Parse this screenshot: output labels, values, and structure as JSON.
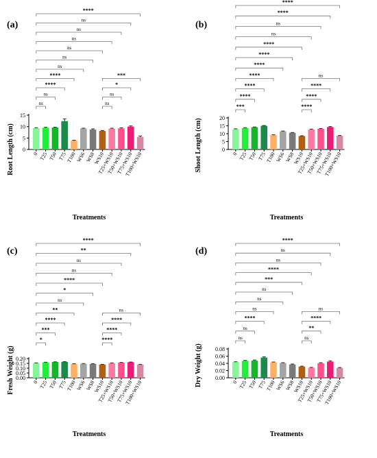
{
  "colors": [
    "#86f59b",
    "#22ee3c",
    "#16b62a",
    "#1b8a4a",
    "#ffb067",
    "#a4a4a4",
    "#7a7a7a",
    "#b05f13",
    "#ff7aa3",
    "#ff4f8d",
    "#ec1c76",
    "#d48aa6"
  ],
  "chart_data": [
    {
      "type": "bar",
      "panel": "(a)",
      "categories": [
        "0",
        "T25",
        "T50",
        "T75",
        "T100",
        "WS6",
        "WS8",
        "WS10",
        "T25+WS10",
        "T50+WS10",
        "T75+WS10",
        "T100+WS10"
      ],
      "values": [
        9.3,
        9.5,
        9.6,
        12.4,
        3.9,
        9.2,
        8.7,
        8.1,
        9.1,
        9.2,
        10.0,
        5.5
      ],
      "errors": [
        0.2,
        0.2,
        0.1,
        1.0,
        0.15,
        0.1,
        0.3,
        0.2,
        0.2,
        0.25,
        0.3,
        0.4
      ],
      "xlabel": "Treatments",
      "ylabel": "Root Length (cm)",
      "ylim": [
        0,
        15
      ],
      "yticks": [
        "0",
        "5",
        "10",
        "15"
      ],
      "comparisons": [
        {
          "from": "0",
          "to": "T25",
          "label": "ns"
        },
        {
          "from": "0",
          "to": "T50",
          "label": "ns"
        },
        {
          "from": "0",
          "to": "T75",
          "label": "****"
        },
        {
          "from": "0",
          "to": "T100",
          "label": "****"
        },
        {
          "from": "0",
          "to": "WS6",
          "label": "ns"
        },
        {
          "from": "0",
          "to": "WS8",
          "label": "ns"
        },
        {
          "from": "0",
          "to": "WS10",
          "label": "ns"
        },
        {
          "from": "0",
          "to": "T25+WS10",
          "label": "ns"
        },
        {
          "from": "0",
          "to": "T50+WS10",
          "label": "ns"
        },
        {
          "from": "0",
          "to": "T75+WS10",
          "label": "ns"
        },
        {
          "from": "0",
          "to": "T100+WS10",
          "label": "****"
        },
        {
          "from": "WS10",
          "to": "T25+WS10",
          "label": "ns"
        },
        {
          "from": "WS10",
          "to": "T50+WS10",
          "label": "ns"
        },
        {
          "from": "WS10",
          "to": "T75+WS10",
          "label": "*"
        },
        {
          "from": "WS10",
          "to": "T100+WS10",
          "label": "***"
        }
      ]
    },
    {
      "type": "bar",
      "panel": "(b)",
      "categories": [
        "0",
        "T25",
        "T50",
        "T75",
        "T100",
        "WS6",
        "WS8",
        "WS10",
        "T25+WS10",
        "T50+WS10",
        "T75+WS10",
        "T100+WS10"
      ],
      "values": [
        12.9,
        13.6,
        14.1,
        15.0,
        9.1,
        11.5,
        10.6,
        8.5,
        12.6,
        13.1,
        14.2,
        8.7
      ],
      "errors": [
        0.2,
        0.2,
        0.15,
        0.2,
        0.2,
        0.2,
        0.15,
        0.2,
        0.3,
        0.2,
        0.3,
        0.15
      ],
      "xlabel": "Treatments",
      "ylabel": "Shoot Length (cm)",
      "ylim": [
        0,
        20
      ],
      "yticks": [
        "0",
        "5",
        "10",
        "15",
        "20"
      ],
      "comparisons": [
        {
          "from": "0",
          "to": "T25",
          "label": "***"
        },
        {
          "from": "0",
          "to": "T50",
          "label": "****"
        },
        {
          "from": "0",
          "to": "T75",
          "label": "****"
        },
        {
          "from": "0",
          "to": "T100",
          "label": "****"
        },
        {
          "from": "0",
          "to": "WS6",
          "label": "****"
        },
        {
          "from": "0",
          "to": "WS8",
          "label": "****"
        },
        {
          "from": "0",
          "to": "WS10",
          "label": "****"
        },
        {
          "from": "0",
          "to": "T25+WS10",
          "label": "ns"
        },
        {
          "from": "0",
          "to": "T50+WS10",
          "label": "ns"
        },
        {
          "from": "0",
          "to": "T75+WS10",
          "label": "****"
        },
        {
          "from": "0",
          "to": "T100+WS10",
          "label": "****"
        },
        {
          "from": "WS10",
          "to": "T25+WS10",
          "label": "****"
        },
        {
          "from": "WS10",
          "to": "T50+WS10",
          "label": "****"
        },
        {
          "from": "WS10",
          "to": "T75+WS10",
          "label": "****"
        },
        {
          "from": "WS10",
          "to": "T100+WS10",
          "label": "ns"
        }
      ]
    },
    {
      "type": "bar",
      "panel": "(c)",
      "categories": [
        "0",
        "T25",
        "T50",
        "T75",
        "T100",
        "WS6",
        "WS8",
        "WS10",
        "T25+WS10",
        "T50+WS10",
        "T75+WS10",
        "T100+WS10"
      ],
      "values": [
        0.153,
        0.16,
        0.164,
        0.166,
        0.144,
        0.146,
        0.144,
        0.138,
        0.152,
        0.158,
        0.162,
        0.138
      ],
      "errors": [
        0.002,
        0.002,
        0.002,
        0.002,
        0.002,
        0.002,
        0.002,
        0.002,
        0.003,
        0.002,
        0.002,
        0.002
      ],
      "xlabel": "Treatments",
      "ylabel": "Fresh Weight (g)",
      "ylim": [
        0,
        0.2
      ],
      "yticks": [
        "0.00",
        "0.05",
        "0.10",
        "0.15",
        "0.20"
      ],
      "comparisons": [
        {
          "from": "0",
          "to": "T25",
          "label": "*"
        },
        {
          "from": "0",
          "to": "T50",
          "label": "***"
        },
        {
          "from": "0",
          "to": "T75",
          "label": "****"
        },
        {
          "from": "0",
          "to": "T100",
          "label": "**"
        },
        {
          "from": "0",
          "to": "WS6",
          "label": "ns"
        },
        {
          "from": "0",
          "to": "WS8",
          "label": "*"
        },
        {
          "from": "0",
          "to": "WS10",
          "label": "****"
        },
        {
          "from": "0",
          "to": "T25+WS10",
          "label": "ns"
        },
        {
          "from": "0",
          "to": "T50+WS10",
          "label": "ns"
        },
        {
          "from": "0",
          "to": "T75+WS10",
          "label": "**"
        },
        {
          "from": "0",
          "to": "T100+WS10",
          "label": "****"
        },
        {
          "from": "WS10",
          "to": "T25+WS10",
          "label": "****"
        },
        {
          "from": "WS10",
          "to": "T50+WS10",
          "label": "****"
        },
        {
          "from": "WS10",
          "to": "T75+WS10",
          "label": "****"
        },
        {
          "from": "WS10",
          "to": "T100+WS10",
          "label": "ns"
        }
      ]
    },
    {
      "type": "bar",
      "panel": "(d)",
      "categories": [
        "0",
        "T25",
        "T50",
        "T75",
        "T100",
        "WS6",
        "WS8",
        "WS10",
        "T25+WS10",
        "T50+WS10",
        "T75+WS10",
        "T100+WS10"
      ],
      "values": [
        0.0435,
        0.0472,
        0.0478,
        0.0562,
        0.0428,
        0.041,
        0.037,
        0.0312,
        0.0278,
        0.0405,
        0.045,
        0.0275
      ],
      "errors": [
        0.001,
        0.001,
        0.0015,
        0.002,
        0.001,
        0.001,
        0.0012,
        0.001,
        0.001,
        0.0015,
        0.002,
        0.001
      ],
      "xlabel": "Treatments",
      "ylabel": "Dry Weight (g)",
      "ylim": [
        0,
        0.08
      ],
      "yticks": [
        "0.00",
        "0.02",
        "0.04",
        "0.06",
        "0.08"
      ],
      "comparisons": [
        {
          "from": "0",
          "to": "T25",
          "label": "ns"
        },
        {
          "from": "0",
          "to": "T50",
          "label": "ns"
        },
        {
          "from": "0",
          "to": "T75",
          "label": "****"
        },
        {
          "from": "0",
          "to": "T100",
          "label": "ns"
        },
        {
          "from": "0",
          "to": "WS6",
          "label": "ns"
        },
        {
          "from": "0",
          "to": "WS8",
          "label": "ns"
        },
        {
          "from": "0",
          "to": "WS10",
          "label": "***"
        },
        {
          "from": "0",
          "to": "T25+WS10",
          "label": "****"
        },
        {
          "from": "0",
          "to": "T50+WS10",
          "label": "ns"
        },
        {
          "from": "0",
          "to": "T75+WS10",
          "label": "ns"
        },
        {
          "from": "0",
          "to": "T100+WS10",
          "label": "****"
        },
        {
          "from": "WS10",
          "to": "T25+WS10",
          "label": "ns"
        },
        {
          "from": "WS10",
          "to": "T50+WS10",
          "label": "**"
        },
        {
          "from": "WS10",
          "to": "T75+WS10",
          "label": "****"
        },
        {
          "from": "WS10",
          "to": "T100+WS10",
          "label": "ns"
        }
      ]
    }
  ]
}
